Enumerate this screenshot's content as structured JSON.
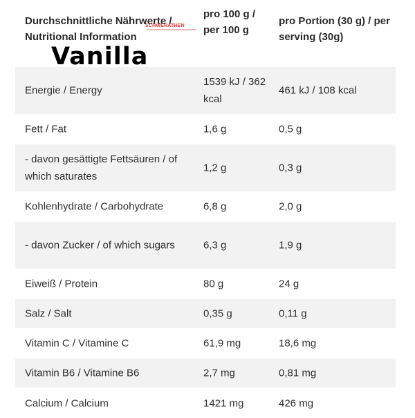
{
  "header": {
    "col1": "Durchschnittliche Nährwerte / Nutritional Information",
    "col2": "pro 100 g / per 100 g",
    "col3": "pro Portion (30 g) / per serving (30g)",
    "flavor": "Vanilla",
    "stamp": "SCHWERATHEN"
  },
  "rows": [
    {
      "name": "Energie / Energy",
      "per100": "1539 kJ / 362 kcal",
      "perServing": "461 kJ / 108 kcal"
    },
    {
      "name": "Fett / Fat",
      "per100": "1,6 g",
      "perServing": "0,5 g"
    },
    {
      "name": "- davon gesättigte Fettsäuren / of which saturates",
      "per100": "1,2 g",
      "perServing": "0,3 g"
    },
    {
      "name": "Kohlenhydrate / Carbohydrate",
      "per100": "6,8 g",
      "perServing": "2,0 g"
    },
    {
      "name": "- davon Zucker / of which sugars",
      "per100": "6,3 g",
      "perServing": "1,9 g"
    },
    {
      "name": "Eiweiß / Protein",
      "per100": "80 g",
      "perServing": "24 g"
    },
    {
      "name": "Salz / Salt",
      "per100": "0,35 g",
      "perServing": "0,11 g"
    },
    {
      "name": "Vitamin C / Vitamine C",
      "per100": "61,9 mg",
      "perServing": "18,6 mg"
    },
    {
      "name": "Vitamin B6 / Vitamine B6",
      "per100": "2,7 mg",
      "perServing": "0,81 mg"
    },
    {
      "name": "Calcium / Calcium",
      "per100": "1421 mg",
      "perServing": "426 mg"
    }
  ]
}
